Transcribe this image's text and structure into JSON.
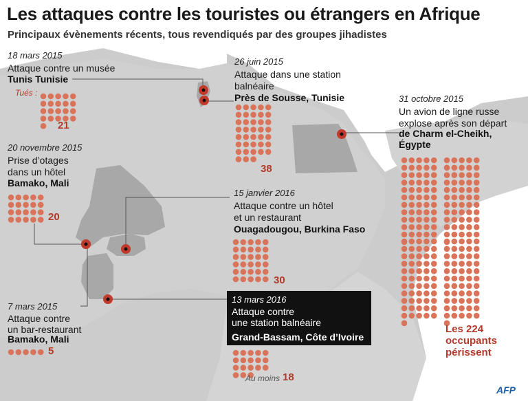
{
  "title": "Les attaques contre les touristes ou étrangers en Afrique",
  "subtitle": "Principaux évènements récents, tous revendiqués par des groupes jihadistes",
  "killed_label": "Tués :",
  "source": "AFP",
  "dot_color": "#d9745a",
  "events": [
    {
      "date": "18 mars 2015",
      "desc": "Attaque contre un musée",
      "place": "Tunis Tunisie",
      "killed": 21,
      "count_text": "21"
    },
    {
      "date": "26 juin 2015",
      "desc1": "Attaque dans une station",
      "desc2": "balnéaire",
      "place": "Près de Sousse, Tunisie",
      "killed": 38,
      "count_text": "38"
    },
    {
      "date": "20 novembre 2015",
      "desc1": "Prise d’otages",
      "desc2": "dans un hôtel",
      "place": "Bamako, Mali",
      "killed": 20,
      "count_text": "20"
    },
    {
      "date": "15 janvier 2016",
      "desc1": "Attaque contre un hôtel",
      "desc2": "et un restaurant",
      "place": "Ouagadougou, Burkina Faso",
      "killed": 30,
      "count_text": "30"
    },
    {
      "date": "31 octobre 2015",
      "desc1": "Un avion de ligne russe",
      "desc2": "explose après son départ",
      "place1": "de Charm el-Cheikh,",
      "place2": "Égypte",
      "killed": 224,
      "count_text": "Les 224 occupants périssent"
    },
    {
      "date": "7 mars 2015",
      "desc1": "Attaque contre",
      "desc2": "un bar-restaurant",
      "place": "Bamako, Mali",
      "killed": 5,
      "count_text": "5"
    },
    {
      "date": "13 mars 2016",
      "desc1": "Attaque contre",
      "desc2": "une station balnéaire",
      "place": "Grand-Bassam, Côte d’Ivoire",
      "killed": 18,
      "prefix": "Au moins",
      "count_text": "18"
    }
  ]
}
